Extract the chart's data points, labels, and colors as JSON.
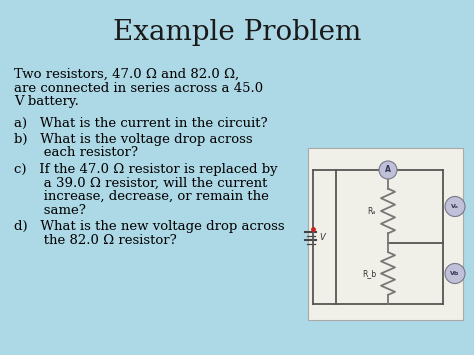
{
  "title": "Example Problem",
  "bg_color": "#ADD8E6",
  "title_fontsize": 20,
  "title_font": "serif",
  "body_fontsize": 9.5,
  "body_font": "serif",
  "main_text_line1": "Two resistors, 47.0 Ω and 82.0 Ω,",
  "main_text_line2": "are connected in series across a 45.0",
  "main_text_line3": "V battery.",
  "item_a": "a)   What is the current in the circuit?",
  "item_b_1": "b)   What is the voltage drop across",
  "item_b_2": "       each resistor?",
  "item_c_1": "c)   If the 47.0 Ω resistor is replaced by",
  "item_c_2": "       a 39.0 Ω resistor, will the current",
  "item_c_3": "       increase, decrease, or remain the",
  "item_c_4": "       same?",
  "item_d_1": "d)   What is the new voltage drop across",
  "item_d_2": "       the 82.0 Ω resistor?",
  "circuit_bg": "#f0f0e8",
  "circuit_line_color": "#555555",
  "resistor_color": "#777777",
  "circle_face": "#c0c0d8",
  "circle_edge": "#777788"
}
